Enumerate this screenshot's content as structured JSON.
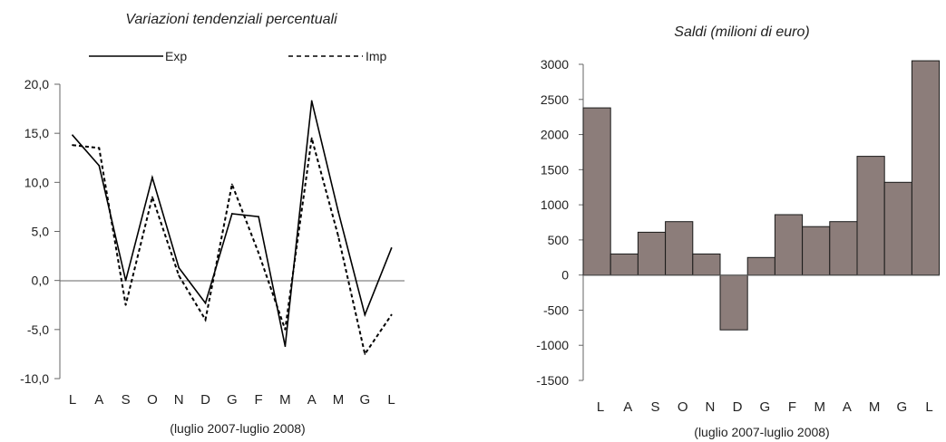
{
  "chart_data": [
    {
      "type": "line",
      "title": "Variazioni tendenziali percentuali",
      "xlabel": "(luglio 2007-luglio 2008)",
      "ylabel": "",
      "categories": [
        "L",
        "A",
        "S",
        "O",
        "N",
        "D",
        "G",
        "F",
        "M",
        "A",
        "M",
        "G",
        "L"
      ],
      "ylim": [
        -10,
        20
      ],
      "yticks": [
        "20,0",
        "15,0",
        "10,0",
        "5,0",
        "0,0",
        "-5,0",
        "-10,0"
      ],
      "legend_position": "top",
      "series": [
        {
          "name": "Exp",
          "style": "solid",
          "color": "#000000",
          "values": [
            14.8,
            11.7,
            0.0,
            10.5,
            1.3,
            -2.3,
            6.8,
            6.5,
            -6.7,
            18.3,
            7.0,
            -3.5,
            3.3
          ]
        },
        {
          "name": "Imp",
          "style": "dashed",
          "color": "#000000",
          "values": [
            13.8,
            13.5,
            -2.5,
            8.5,
            0.5,
            -4.0,
            9.8,
            2.8,
            -5.0,
            14.5,
            4.5,
            -7.5,
            -3.5
          ]
        }
      ]
    },
    {
      "type": "bar",
      "title": "Saldi (milioni di euro)",
      "xlabel": "(luglio 2007-luglio 2008)",
      "ylabel": "",
      "categories": [
        "L",
        "A",
        "S",
        "O",
        "N",
        "D",
        "G",
        "F",
        "M",
        "A",
        "M",
        "G",
        "L"
      ],
      "ylim": [
        -1500,
        3000
      ],
      "yticks": [
        "3000",
        "2500",
        "2000",
        "1500",
        "1000",
        "500",
        "0",
        "-500",
        "-1000",
        "-1500"
      ],
      "bar_color": "#8c7d7a",
      "values": [
        2380,
        300,
        610,
        760,
        300,
        -780,
        250,
        860,
        690,
        760,
        1690,
        1320,
        3050
      ]
    }
  ]
}
